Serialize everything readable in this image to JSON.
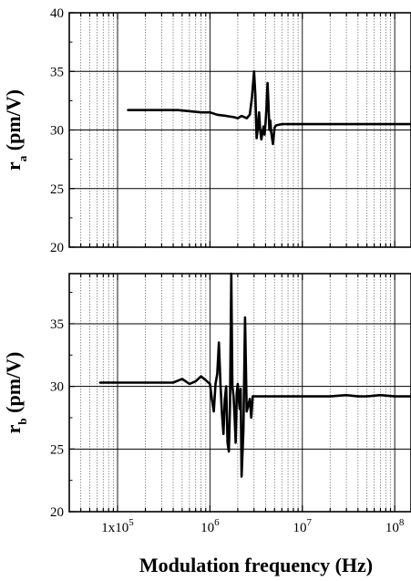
{
  "chart_data": [
    {
      "type": "line",
      "ylabel_main": "r",
      "ylabel_sub": "a",
      "ylabel_unit": " (pm/V)",
      "xscale": "log",
      "xlim": [
        30000,
        150000000
      ],
      "ylim": [
        20,
        40
      ],
      "yticks": [
        20,
        25,
        30,
        35,
        40
      ],
      "ytick_labels": [
        "20",
        "25",
        "30",
        "35",
        "40"
      ],
      "grid": true,
      "series": [
        {
          "x": [
            130000,
            200000,
            300000,
            450000,
            600000,
            800000,
            1000000,
            1200000,
            1500000,
            1800000,
            2000000,
            2200000,
            2500000,
            2700000,
            2850000,
            3000000,
            3100000,
            3200000,
            3300000,
            3400000,
            3500000,
            3600000,
            3700000,
            3800000,
            3900000,
            4000000,
            4100000,
            4200000,
            4300000,
            4400000,
            4500000,
            4600000,
            4800000,
            5000000,
            5200000,
            6000000,
            8000000,
            10000000,
            20000000,
            50000000,
            100000000,
            150000000
          ],
          "y": [
            31.7,
            31.7,
            31.7,
            31.7,
            31.6,
            31.5,
            31.5,
            31.3,
            31.2,
            31.1,
            31.0,
            31.2,
            31.0,
            31.3,
            32.8,
            35.0,
            33.0,
            29.3,
            30.2,
            31.5,
            30.0,
            29.2,
            29.8,
            30.3,
            29.6,
            30.6,
            32.0,
            34.0,
            32.2,
            30.0,
            30.8,
            29.8,
            28.8,
            30.2,
            30.4,
            30.5,
            30.5,
            30.5,
            30.5,
            30.5,
            30.5,
            30.5
          ]
        }
      ]
    },
    {
      "type": "line",
      "ylabel_main": "r",
      "ylabel_sub": "b",
      "ylabel_unit": " (pm/V)",
      "xlabel": "Modulation frequency (Hz)",
      "xscale": "log",
      "xlim": [
        30000,
        150000000
      ],
      "ylim": [
        20,
        39
      ],
      "yticks": [
        20,
        25,
        30,
        35
      ],
      "ytick_labels": [
        "20",
        "25",
        "30",
        "35"
      ],
      "xtick_labels": [
        {
          "base": "1x10",
          "exp": "5",
          "value": 100000
        },
        {
          "base": "10",
          "exp": "6",
          "value": 1000000
        },
        {
          "base": "10",
          "exp": "7",
          "value": 10000000
        },
        {
          "base": "10",
          "exp": "8",
          "value": 100000000
        }
      ],
      "grid": true,
      "series": [
        {
          "x": [
            65000,
            100000,
            200000,
            300000,
            400000,
            500000,
            600000,
            700000,
            800000,
            900000,
            1000000,
            1050000,
            1100000,
            1150000,
            1200000,
            1250000,
            1300000,
            1350000,
            1400000,
            1450000,
            1500000,
            1550000,
            1600000,
            1650000,
            1700000,
            1750000,
            1800000,
            1850000,
            1900000,
            1950000,
            2000000,
            2050000,
            2100000,
            2150000,
            2200000,
            2300000,
            2400000,
            2500000,
            2600000,
            2700000,
            2800000,
            2900000,
            3000000,
            3500000,
            5000000,
            10000000,
            20000000,
            30000000,
            40000000,
            50000000,
            70000000,
            100000000,
            150000000
          ],
          "y": [
            30.3,
            30.3,
            30.3,
            30.3,
            30.3,
            30.6,
            30.2,
            30.4,
            30.8,
            30.5,
            30.2,
            29.0,
            28.0,
            30.2,
            31.0,
            33.5,
            30.2,
            27.8,
            26.2,
            29.0,
            30.0,
            25.5,
            24.8,
            28.5,
            39.0,
            30.0,
            29.2,
            27.5,
            25.5,
            29.5,
            30.2,
            29.0,
            28.2,
            29.8,
            22.8,
            26.5,
            35.5,
            28.0,
            28.5,
            29.0,
            27.5,
            29.2,
            29.2,
            29.2,
            29.2,
            29.2,
            29.2,
            29.3,
            29.2,
            29.2,
            29.3,
            29.2,
            29.2
          ]
        }
      ]
    }
  ]
}
